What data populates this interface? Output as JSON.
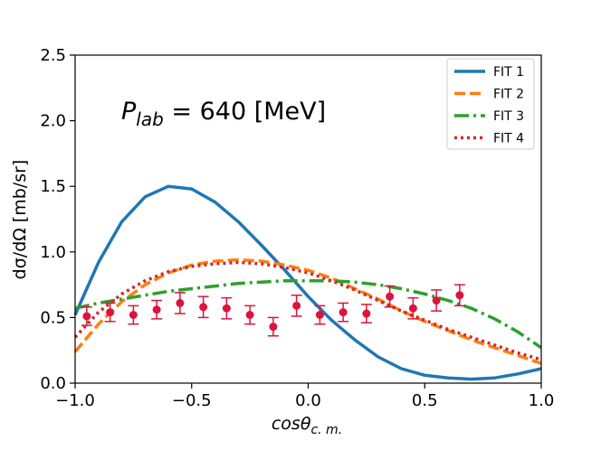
{
  "chart_data": {
    "type": "line",
    "annotation": {
      "base": "P",
      "subscript": "lab",
      "rest": " = 640 [MeV]"
    },
    "xlabel": {
      "base": "cosθ",
      "subscript": "c. m."
    },
    "ylabel": "dσ/dΩ [mb/sr]",
    "xlim": [
      -1.0,
      1.0
    ],
    "ylim": [
      0.0,
      2.5
    ],
    "xticks": [
      -1.0,
      -0.5,
      0.0,
      0.5,
      1.0
    ],
    "xtick_labels": [
      "−1.0",
      "−0.5",
      "0.0",
      "0.5",
      "1.0"
    ],
    "yticks": [
      0.0,
      0.5,
      1.0,
      1.5,
      2.0,
      2.5
    ],
    "ytick_labels": [
      "0.0",
      "0.5",
      "1.0",
      "1.5",
      "2.0",
      "2.5"
    ],
    "legend_position": "top-right",
    "series": [
      {
        "name": "FIT 1",
        "style": "solid",
        "color": "#1f77b4",
        "x": [
          -1.0,
          -0.9,
          -0.8,
          -0.7,
          -0.6,
          -0.5,
          -0.4,
          -0.3,
          -0.2,
          -0.1,
          0.0,
          0.1,
          0.2,
          0.3,
          0.4,
          0.5,
          0.6,
          0.7,
          0.8,
          0.9,
          1.0
        ],
        "y": [
          0.52,
          0.92,
          1.23,
          1.42,
          1.5,
          1.48,
          1.38,
          1.23,
          1.05,
          0.86,
          0.66,
          0.48,
          0.33,
          0.2,
          0.11,
          0.06,
          0.04,
          0.03,
          0.04,
          0.07,
          0.11
        ]
      },
      {
        "name": "FIT 2",
        "style": "dashed",
        "color": "#ff7f0e",
        "x": [
          -1.0,
          -0.9,
          -0.8,
          -0.7,
          -0.6,
          -0.5,
          -0.4,
          -0.3,
          -0.2,
          -0.1,
          0.0,
          0.1,
          0.2,
          0.3,
          0.4,
          0.5,
          0.6,
          0.7,
          0.8,
          0.9,
          1.0
        ],
        "y": [
          0.24,
          0.45,
          0.62,
          0.75,
          0.84,
          0.9,
          0.93,
          0.94,
          0.93,
          0.9,
          0.86,
          0.8,
          0.72,
          0.64,
          0.55,
          0.47,
          0.4,
          0.33,
          0.27,
          0.21,
          0.15
        ]
      },
      {
        "name": "FIT 3",
        "style": "dashdot",
        "color": "#2ca02c",
        "x": [
          -1.0,
          -0.9,
          -0.8,
          -0.7,
          -0.6,
          -0.5,
          -0.4,
          -0.3,
          -0.2,
          -0.1,
          0.0,
          0.1,
          0.2,
          0.3,
          0.4,
          0.5,
          0.6,
          0.7,
          0.8,
          0.9,
          1.0
        ],
        "y": [
          0.57,
          0.61,
          0.64,
          0.67,
          0.7,
          0.72,
          0.74,
          0.76,
          0.77,
          0.78,
          0.78,
          0.78,
          0.77,
          0.75,
          0.72,
          0.68,
          0.63,
          0.57,
          0.49,
          0.39,
          0.27
        ]
      },
      {
        "name": "FIT 4",
        "style": "dotted",
        "color": "#d62728",
        "x": [
          -1.0,
          -0.9,
          -0.8,
          -0.7,
          -0.6,
          -0.5,
          -0.4,
          -0.3,
          -0.2,
          -0.1,
          0.0,
          0.1,
          0.2,
          0.3,
          0.4,
          0.5,
          0.6,
          0.7,
          0.8,
          0.9,
          1.0
        ],
        "y": [
          0.35,
          0.54,
          0.68,
          0.78,
          0.85,
          0.89,
          0.91,
          0.92,
          0.91,
          0.88,
          0.84,
          0.78,
          0.71,
          0.63,
          0.55,
          0.48,
          0.41,
          0.35,
          0.29,
          0.23,
          0.18
        ]
      }
    ],
    "data_points": {
      "color": "#dc143c",
      "x": [
        -0.95,
        -0.85,
        -0.75,
        -0.65,
        -0.55,
        -0.45,
        -0.35,
        -0.25,
        -0.15,
        -0.05,
        0.05,
        0.15,
        0.25,
        0.35,
        0.45,
        0.55,
        0.65
      ],
      "y": [
        0.51,
        0.54,
        0.52,
        0.56,
        0.61,
        0.58,
        0.57,
        0.52,
        0.43,
        0.59,
        0.52,
        0.54,
        0.53,
        0.66,
        0.57,
        0.63,
        0.67
      ],
      "err": [
        0.07,
        0.07,
        0.07,
        0.07,
        0.08,
        0.08,
        0.08,
        0.07,
        0.07,
        0.08,
        0.07,
        0.07,
        0.07,
        0.08,
        0.08,
        0.08,
        0.08
      ]
    }
  }
}
